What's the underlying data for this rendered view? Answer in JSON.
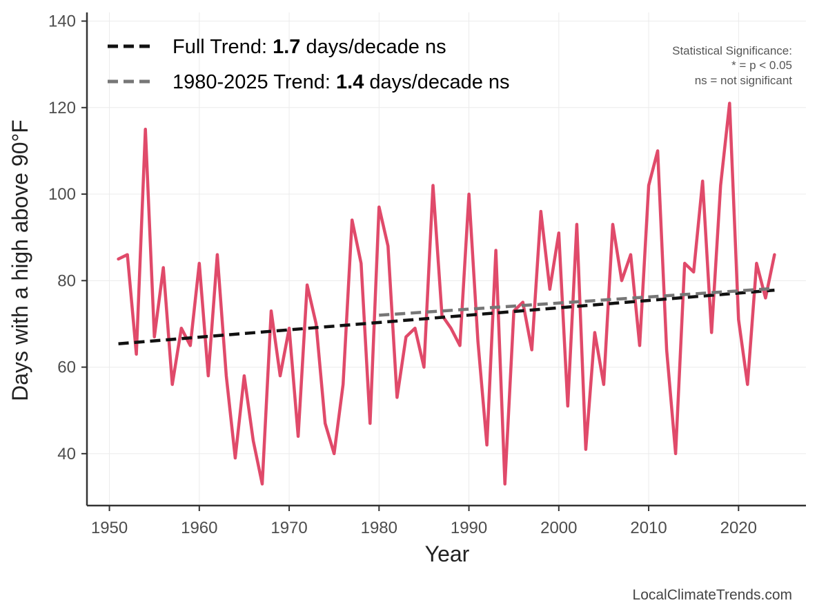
{
  "chart_data": {
    "type": "line",
    "xlabel": "Year",
    "ylabel": "Days with a high above 90°F",
    "xlim": [
      1947.5,
      2027.5
    ],
    "ylim": [
      28,
      142
    ],
    "xticks": [
      1950,
      1960,
      1970,
      1980,
      1990,
      2000,
      2010,
      2020
    ],
    "yticks": [
      40,
      60,
      80,
      100,
      120,
      140
    ],
    "grid": true,
    "series": [
      {
        "name": "Days above 90°F",
        "color": "#e04a6a",
        "x": [
          1951,
          1952,
          1953,
          1954,
          1955,
          1956,
          1957,
          1958,
          1959,
          1960,
          1961,
          1962,
          1963,
          1964,
          1965,
          1966,
          1967,
          1968,
          1969,
          1970,
          1971,
          1972,
          1973,
          1974,
          1975,
          1976,
          1977,
          1978,
          1979,
          1980,
          1981,
          1982,
          1983,
          1984,
          1985,
          1986,
          1987,
          1988,
          1989,
          1990,
          1991,
          1992,
          1993,
          1994,
          1995,
          1996,
          1997,
          1998,
          1999,
          2000,
          2001,
          2002,
          2003,
          2004,
          2005,
          2006,
          2007,
          2008,
          2009,
          2010,
          2011,
          2012,
          2013,
          2014,
          2015,
          2016,
          2017,
          2018,
          2019,
          2020,
          2021,
          2022,
          2023,
          2024
        ],
        "values": [
          85,
          86,
          63,
          115,
          67,
          83,
          56,
          69,
          65,
          84,
          58,
          86,
          58,
          39,
          58,
          43,
          33,
          73,
          58,
          69,
          44,
          79,
          70,
          47,
          40,
          56,
          94,
          84,
          47,
          97,
          88,
          53,
          67,
          69,
          60,
          102,
          72,
          69,
          65,
          100,
          66,
          42,
          87,
          33,
          73,
          75,
          64,
          96,
          78,
          91,
          51,
          93,
          41,
          68,
          56,
          93,
          80,
          86,
          65,
          102,
          110,
          64,
          40,
          84,
          82,
          103,
          68,
          102,
          121,
          71,
          56,
          84,
          76,
          86
        ]
      }
    ],
    "trends": [
      {
        "name": "Full Trend",
        "color": "#111111",
        "dash": true,
        "x": [
          1951,
          2024
        ],
        "values": [
          65.4,
          77.8
        ],
        "legend_prefix": "Full Trend: ",
        "legend_value": "1.7",
        "legend_suffix": " days/decade ns"
      },
      {
        "name": "1980-2025 Trend",
        "color": "#777777",
        "dash": true,
        "x": [
          1980,
          2024
        ],
        "values": [
          72.0,
          78.2
        ],
        "legend_prefix": "1980-2025 Trend: ",
        "legend_value": "1.4",
        "legend_suffix": " days/decade ns"
      }
    ],
    "legend_position": "top-left",
    "significance_note": {
      "title": "Statistical Significance:",
      "line1": "* = p < 0.05",
      "line2": "ns = not significant"
    },
    "credit": "LocalClimateTrends.com"
  }
}
